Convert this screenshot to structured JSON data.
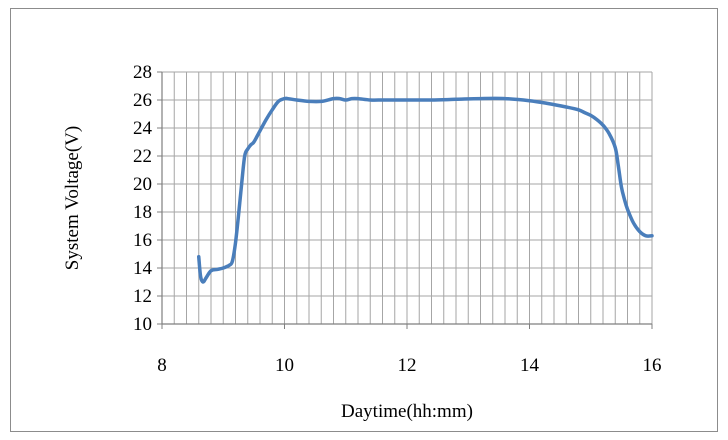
{
  "chart_data": {
    "type": "line",
    "title": "",
    "xlabel": "Daytime(hh:mm)",
    "ylabel": "System Voltage(V)",
    "xlim": [
      8,
      16
    ],
    "ylim": [
      10,
      28
    ],
    "x_ticks": [
      8,
      10,
      12,
      14,
      16
    ],
    "y_ticks": [
      10,
      12,
      14,
      16,
      18,
      20,
      22,
      24,
      26,
      28
    ],
    "x_minor_step": 0.2,
    "y_major_step": 2,
    "grid": true,
    "legend": "none",
    "series": [
      {
        "color": "#4a7ebb",
        "x": [
          8.6,
          8.63,
          8.67,
          8.72,
          8.8,
          8.9,
          9.0,
          9.1,
          9.15,
          9.2,
          9.25,
          9.3,
          9.35,
          9.4,
          9.45,
          9.5,
          9.6,
          9.7,
          9.8,
          9.9,
          10.0,
          10.05,
          10.2,
          10.4,
          10.6,
          10.8,
          10.9,
          11.0,
          11.1,
          11.2,
          11.4,
          11.6,
          11.8,
          12.0,
          12.4,
          12.8,
          13.2,
          13.6,
          14.0,
          14.3,
          14.6,
          14.8,
          14.9,
          15.0,
          15.1,
          15.2,
          15.3,
          15.4,
          15.45,
          15.5,
          15.55,
          15.6,
          15.7,
          15.8,
          15.9,
          16.0
        ],
        "y": [
          14.8,
          13.4,
          13.0,
          13.3,
          13.8,
          13.9,
          14.0,
          14.2,
          14.5,
          15.8,
          17.8,
          20.0,
          22.0,
          22.5,
          22.8,
          23.0,
          23.8,
          24.6,
          25.3,
          25.9,
          26.1,
          26.1,
          26.0,
          25.9,
          25.9,
          26.1,
          26.1,
          26.0,
          26.1,
          26.1,
          26.0,
          26.0,
          26.0,
          26.0,
          26.0,
          26.05,
          26.1,
          26.1,
          25.95,
          25.75,
          25.5,
          25.3,
          25.1,
          24.9,
          24.6,
          24.2,
          23.6,
          22.6,
          21.3,
          19.8,
          18.9,
          18.2,
          17.2,
          16.6,
          16.3,
          16.3
        ]
      }
    ]
  }
}
